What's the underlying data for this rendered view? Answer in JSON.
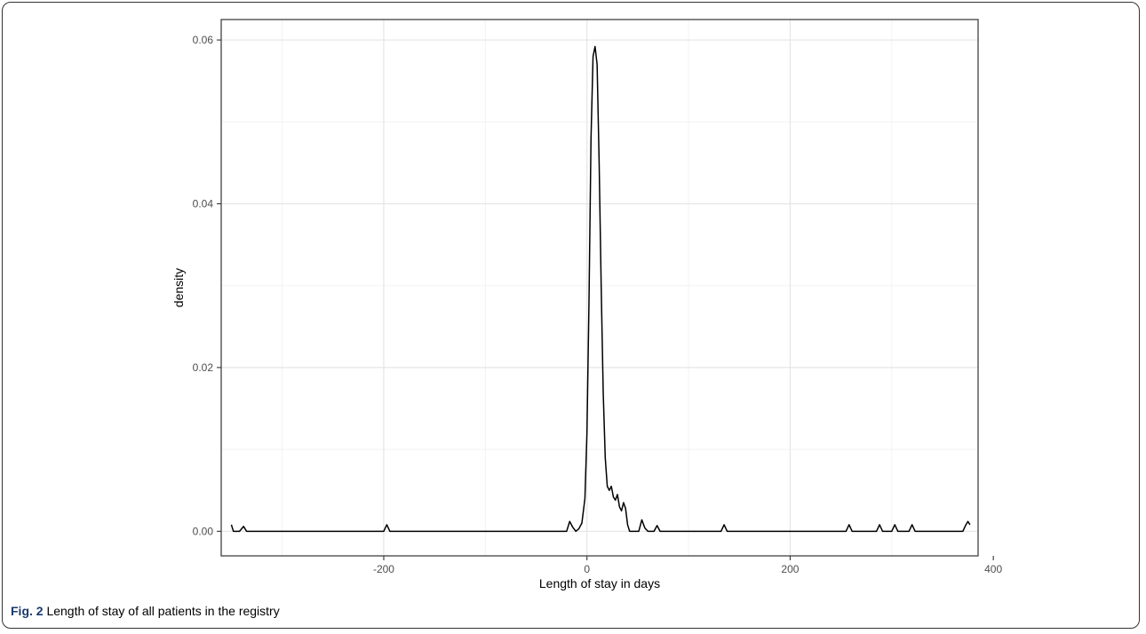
{
  "caption": {
    "label": "Fig. 2",
    "text": "Length of stay of all patients in the registry"
  },
  "chart_data": {
    "type": "line",
    "title": "",
    "xlabel": "Length of stay in days",
    "ylabel": "density",
    "xlim": [
      -360,
      385
    ],
    "ylim": [
      -0.003,
      0.0625
    ],
    "x_ticks": [
      -200,
      0,
      200,
      400
    ],
    "x_tick_labels": [
      "-200",
      "0",
      "200",
      "400"
    ],
    "y_ticks": [
      0,
      0.02,
      0.04,
      0.06
    ],
    "y_tick_labels": [
      "0.00",
      "0.02",
      "0.04",
      "0.06"
    ],
    "grid": true,
    "legend": "none",
    "series": [
      {
        "x": [
          -350,
          -348,
          -345,
          -342,
          -338,
          -335,
          -332,
          -200,
          -197,
          -194,
          -191,
          -188,
          -20,
          -17,
          -14,
          -11,
          -8,
          -5,
          -2,
          0,
          2,
          4,
          6,
          8,
          10,
          12,
          14,
          16,
          18,
          20,
          22,
          24,
          26,
          28,
          30,
          32,
          34,
          36,
          38,
          40,
          42,
          44,
          46,
          48,
          51,
          54,
          57,
          60,
          66,
          69,
          72,
          75,
          132,
          135,
          138,
          141,
          255,
          258,
          261,
          264,
          285,
          288,
          291,
          294,
          300,
          303,
          306,
          309,
          317,
          320,
          323,
          326,
          370,
          373,
          375,
          377
        ],
        "y": [
          0.0008,
          0.0,
          0.0,
          0.0,
          0.0006,
          0.0,
          0.0,
          0.0,
          0.0008,
          0.0,
          0.0,
          0.0,
          0.0,
          0.0012,
          0.0005,
          0.0,
          0.0003,
          0.001,
          0.004,
          0.012,
          0.028,
          0.048,
          0.058,
          0.0592,
          0.057,
          0.045,
          0.03,
          0.017,
          0.009,
          0.0055,
          0.005,
          0.0055,
          0.0042,
          0.0038,
          0.0045,
          0.003,
          0.0025,
          0.0035,
          0.0028,
          0.0008,
          0.0,
          0.0,
          0.0,
          0.0,
          0.0,
          0.0014,
          0.0004,
          0.0,
          0.0,
          0.0007,
          0.0,
          0.0,
          0.0,
          0.0008,
          0.0,
          0.0,
          0.0,
          0.0008,
          0.0,
          0.0,
          0.0,
          0.0008,
          0.0,
          0.0,
          0.0,
          0.0008,
          0.0,
          0.0,
          0.0,
          0.0008,
          0.0,
          0.0,
          0.0,
          0.0008,
          0.0012,
          0.0008
        ]
      }
    ]
  }
}
